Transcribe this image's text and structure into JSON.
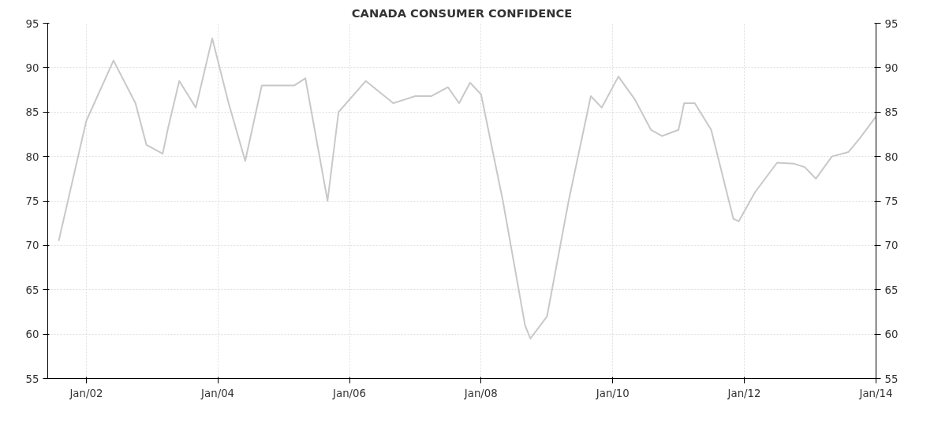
{
  "chart_data": {
    "type": "line",
    "title": "CANADA CONSUMER CONFIDENCE",
    "x": [
      "2001-08",
      "2002-01",
      "2002-06",
      "2002-10",
      "2002-12",
      "2003-03",
      "2003-04",
      "2003-06",
      "2003-09",
      "2003-12",
      "2004-03",
      "2004-06",
      "2004-09",
      "2004-12",
      "2005-03",
      "2005-05",
      "2005-09",
      "2005-11",
      "2006-04",
      "2006-09",
      "2007-01",
      "2007-04",
      "2007-07",
      "2007-09",
      "2007-11",
      "2008-01",
      "2008-05",
      "2008-09",
      "2008-10",
      "2009-01",
      "2009-05",
      "2009-09",
      "2009-11",
      "2010-02",
      "2010-05",
      "2010-08",
      "2010-10",
      "2011-01",
      "2011-02",
      "2011-04",
      "2011-07",
      "2011-11",
      "2011-12",
      "2012-03",
      "2012-07",
      "2012-10",
      "2012-12",
      "2013-02",
      "2013-05",
      "2013-08",
      "2013-10",
      "2014-01"
    ],
    "series": [
      {
        "color": "#c8c8c8",
        "values": [
          70.5,
          84,
          90.8,
          86,
          81.3,
          80.3,
          83.3,
          88.5,
          85.5,
          93.3,
          86,
          79.5,
          88,
          88,
          88,
          88.8,
          75,
          85,
          88.5,
          86,
          86.8,
          86.8,
          87.8,
          86,
          88.3,
          87,
          75,
          61,
          59.5,
          62,
          75,
          86.8,
          85.5,
          89,
          86.5,
          83,
          82.3,
          83,
          86,
          86,
          83,
          73,
          72.7,
          76,
          79.3,
          79.2,
          78.8,
          77.5,
          80,
          80.5,
          82,
          84.5
        ]
      }
    ],
    "xlim": [
      "2001-06",
      "2014-01"
    ],
    "xticks": [
      {
        "value": "2002-01",
        "label": "Jan/02"
      },
      {
        "value": "2004-01",
        "label": "Jan/04"
      },
      {
        "value": "2006-01",
        "label": "Jan/06"
      },
      {
        "value": "2008-01",
        "label": "Jan/08"
      },
      {
        "value": "2010-01",
        "label": "Jan/10"
      },
      {
        "value": "2012-01",
        "label": "Jan/12"
      },
      {
        "value": "2014-01",
        "label": "Jan/14"
      }
    ],
    "ylim": [
      55,
      95
    ],
    "yticks": [
      55,
      60,
      65,
      70,
      75,
      80,
      85,
      90,
      95
    ],
    "y2lim": [
      55,
      95
    ],
    "y2ticks": [
      55,
      60,
      65,
      70,
      75,
      80,
      85,
      90,
      95
    ],
    "grid": true,
    "marker": "none",
    "line_style": "solid"
  }
}
